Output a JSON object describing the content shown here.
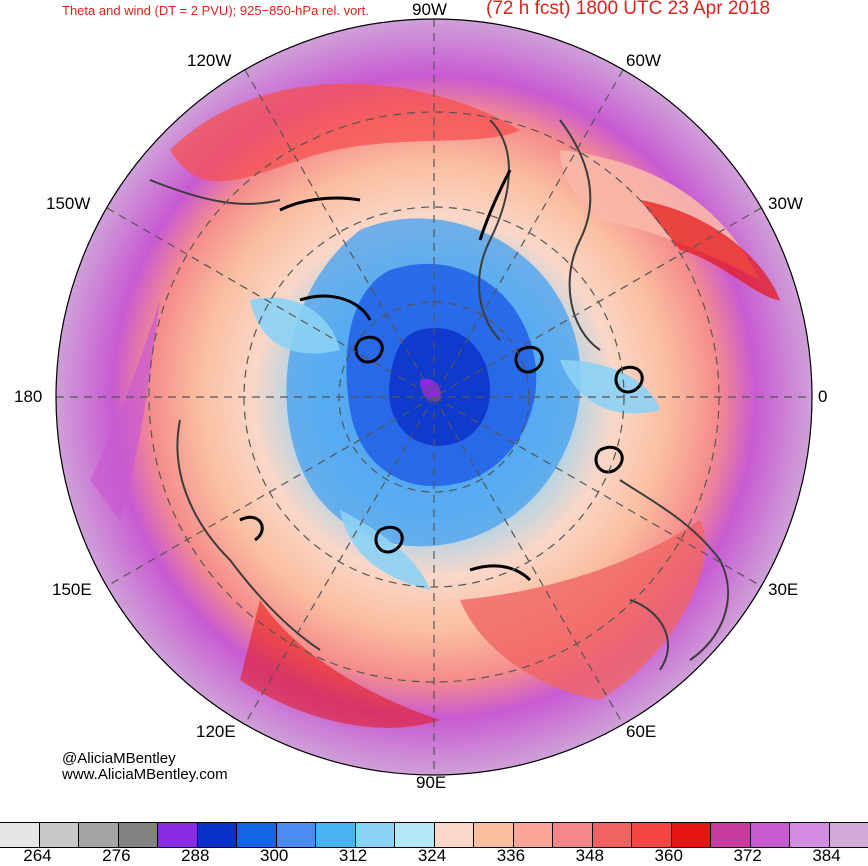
{
  "header": {
    "title_left": "Theta and wind (DT = 2 PVU); 925−850-hPa rel. vort.",
    "title_right": "(72 h fcst) 1800 UTC 23 Apr 2018"
  },
  "longitude_labels": {
    "top": "90W",
    "bottom": "90E",
    "left": "180",
    "right": "0",
    "upper_left_1": "120W",
    "upper_left_2": "150W",
    "upper_right_1": "60W",
    "upper_right_2": "30W",
    "lower_left_1": "150E",
    "lower_left_2": "120E",
    "lower_right_1": "30E",
    "lower_right_2": "60E"
  },
  "credits": {
    "handle": "@AliciaMBentley",
    "website": "www.AliciaMBentley.com"
  },
  "colorbar": {
    "colors": [
      "#e6e6e6",
      "#c8c8c8",
      "#a5a5a5",
      "#828282",
      "#8a2be2",
      "#0a32c8",
      "#1464e6",
      "#4b8cf0",
      "#46b4f0",
      "#8cd2f5",
      "#b4e6f5",
      "#fad7c8",
      "#fabea0",
      "#faa596",
      "#f5878c",
      "#f06464",
      "#f54646",
      "#e61414",
      "#c83ca0",
      "#c85ad2",
      "#d28ce1",
      "#d2aad7"
    ],
    "tick_labels": [
      "264",
      "276",
      "288",
      "300",
      "312",
      "324",
      "336",
      "348",
      "360",
      "372",
      "384"
    ]
  }
}
